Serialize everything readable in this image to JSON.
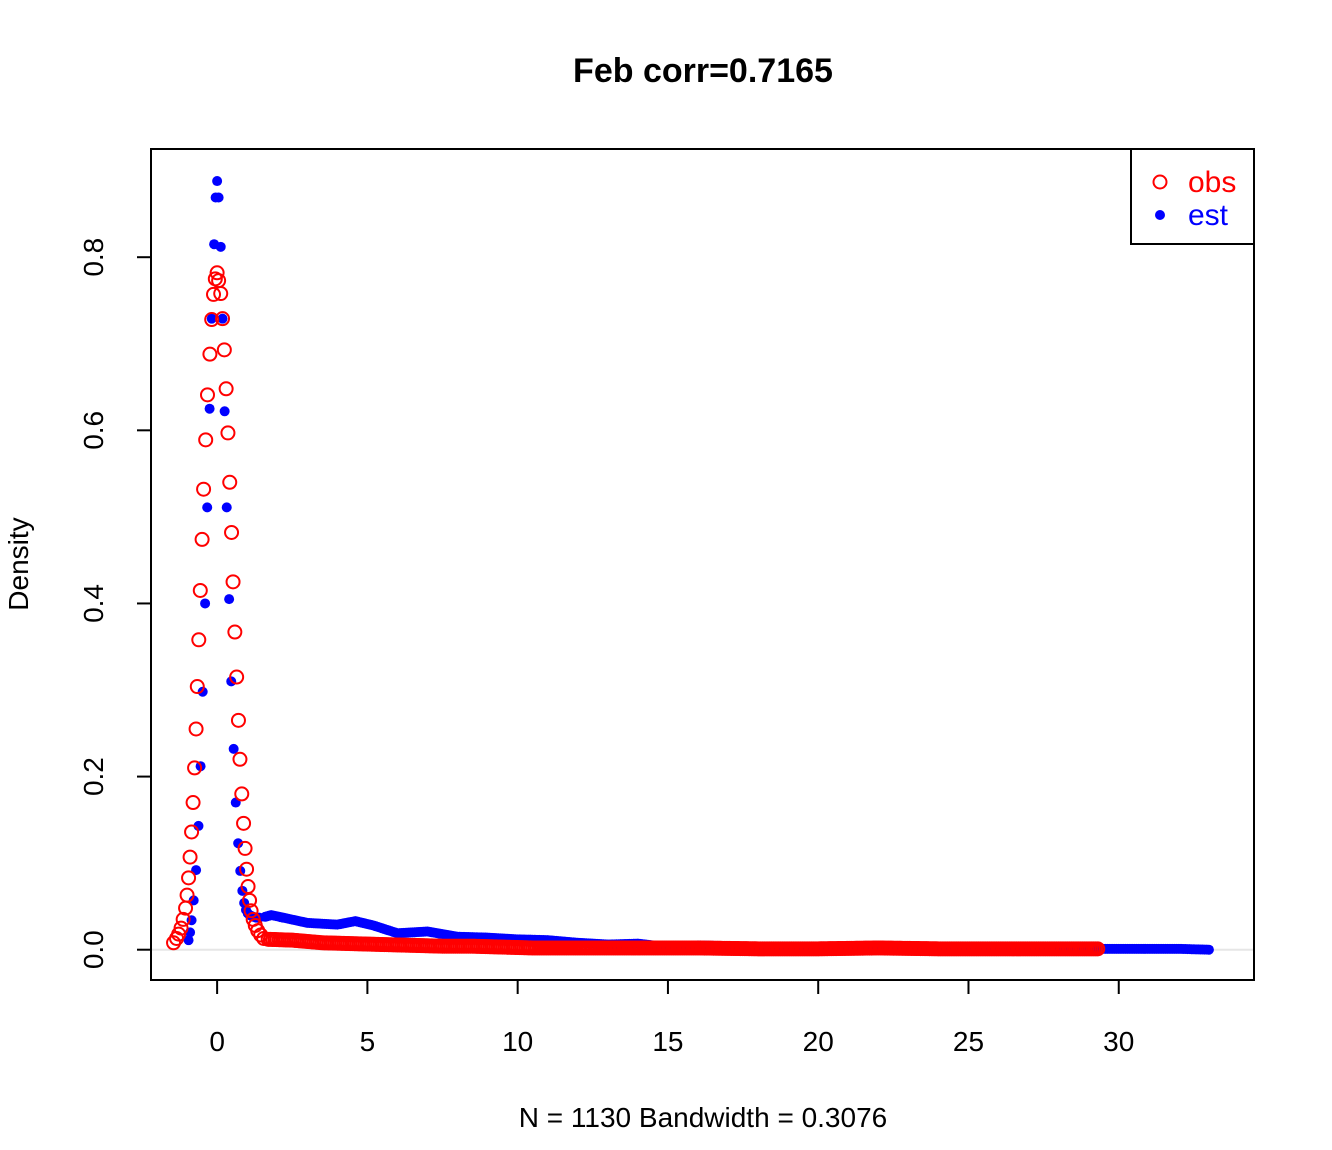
{
  "chart_data": {
    "type": "scatter",
    "title": "Feb corr=0.7165",
    "xlabel": "N = 1130   Bandwidth = 0.3076",
    "ylabel": "Density",
    "xlim": [
      -2.2,
      34.5
    ],
    "ylim": [
      -0.035,
      0.925
    ],
    "x_ticks": [
      0,
      5,
      10,
      15,
      20,
      25,
      30
    ],
    "x_tick_labels": [
      "0",
      "5",
      "10",
      "15",
      "20",
      "25",
      "30"
    ],
    "y_ticks": [
      0.0,
      0.2,
      0.4,
      0.6,
      0.8
    ],
    "y_tick_labels": [
      "0.0",
      "0.2",
      "0.4",
      "0.6",
      "0.8"
    ],
    "grid": false,
    "legend_position": "top-right",
    "series": [
      {
        "name": "obs",
        "color": "#ff0000",
        "marker": "open-circle",
        "peak": [
          [
            -1.45,
            0.008
          ],
          [
            -1.35,
            0.013
          ],
          [
            -1.28,
            0.018
          ],
          [
            -1.2,
            0.025
          ],
          [
            -1.13,
            0.035
          ],
          [
            -1.05,
            0.048
          ],
          [
            -1.0,
            0.063
          ],
          [
            -0.95,
            0.083
          ],
          [
            -0.9,
            0.107
          ],
          [
            -0.85,
            0.136
          ],
          [
            -0.8,
            0.17
          ],
          [
            -0.75,
            0.21
          ],
          [
            -0.7,
            0.255
          ],
          [
            -0.66,
            0.304
          ],
          [
            -0.61,
            0.358
          ],
          [
            -0.56,
            0.415
          ],
          [
            -0.5,
            0.474
          ],
          [
            -0.45,
            0.532
          ],
          [
            -0.38,
            0.589
          ],
          [
            -0.32,
            0.641
          ],
          [
            -0.24,
            0.688
          ],
          [
            -0.18,
            0.728
          ],
          [
            -0.12,
            0.757
          ],
          [
            -0.06,
            0.775
          ],
          [
            0.0,
            0.782
          ],
          [
            0.05,
            0.773
          ],
          [
            0.12,
            0.758
          ],
          [
            0.18,
            0.729
          ],
          [
            0.24,
            0.693
          ],
          [
            0.3,
            0.648
          ],
          [
            0.36,
            0.597
          ],
          [
            0.42,
            0.54
          ],
          [
            0.48,
            0.482
          ],
          [
            0.53,
            0.425
          ],
          [
            0.59,
            0.367
          ],
          [
            0.65,
            0.315
          ],
          [
            0.71,
            0.265
          ],
          [
            0.76,
            0.22
          ],
          [
            0.82,
            0.18
          ],
          [
            0.88,
            0.146
          ],
          [
            0.93,
            0.117
          ],
          [
            0.98,
            0.093
          ],
          [
            1.03,
            0.073
          ],
          [
            1.08,
            0.057
          ],
          [
            1.13,
            0.045
          ],
          [
            1.2,
            0.035
          ],
          [
            1.27,
            0.028
          ],
          [
            1.35,
            0.022
          ],
          [
            1.45,
            0.017
          ],
          [
            1.55,
            0.013
          ]
        ],
        "tail": [
          [
            1.7,
            0.012
          ],
          [
            2.5,
            0.011
          ],
          [
            3.5,
            0.008
          ],
          [
            4.5,
            0.007
          ],
          [
            5.5,
            0.006
          ],
          [
            6.5,
            0.005
          ],
          [
            7.5,
            0.004
          ],
          [
            8.5,
            0.004
          ],
          [
            9.5,
            0.003
          ],
          [
            10.5,
            0.002
          ],
          [
            12,
            0.002
          ],
          [
            14,
            0.002
          ],
          [
            16,
            0.002
          ],
          [
            18,
            0.001
          ],
          [
            20,
            0.001
          ],
          [
            22,
            0.002
          ],
          [
            24,
            0.001
          ],
          [
            26,
            0.001
          ],
          [
            28,
            0.001
          ],
          [
            29.3,
            0.001
          ]
        ]
      },
      {
        "name": "est",
        "color": "#0000ff",
        "marker": "filled-dot",
        "peak": [
          [
            -0.95,
            0.011
          ],
          [
            -0.9,
            0.02
          ],
          [
            -0.85,
            0.034
          ],
          [
            -0.78,
            0.057
          ],
          [
            -0.7,
            0.092
          ],
          [
            -0.62,
            0.143
          ],
          [
            -0.55,
            0.212
          ],
          [
            -0.48,
            0.298
          ],
          [
            -0.4,
            0.4
          ],
          [
            -0.33,
            0.511
          ],
          [
            -0.25,
            0.625
          ],
          [
            -0.18,
            0.729
          ],
          [
            -0.1,
            0.815
          ],
          [
            -0.05,
            0.869
          ],
          [
            0.0,
            0.888
          ],
          [
            0.05,
            0.869
          ],
          [
            0.12,
            0.812
          ],
          [
            0.18,
            0.729
          ],
          [
            0.25,
            0.622
          ],
          [
            0.32,
            0.511
          ],
          [
            0.4,
            0.405
          ],
          [
            0.47,
            0.31
          ],
          [
            0.55,
            0.232
          ],
          [
            0.62,
            0.17
          ],
          [
            0.7,
            0.123
          ],
          [
            0.77,
            0.091
          ],
          [
            0.84,
            0.068
          ],
          [
            0.9,
            0.054
          ],
          [
            0.96,
            0.046
          ],
          [
            1.02,
            0.042
          ],
          [
            1.08,
            0.04
          ],
          [
            1.14,
            0.039
          ],
          [
            1.2,
            0.038
          ],
          [
            1.3,
            0.037
          ],
          [
            1.4,
            0.037
          ]
        ],
        "tail": [
          [
            1.6,
            0.038
          ],
          [
            1.8,
            0.04
          ],
          [
            2.2,
            0.037
          ],
          [
            3.0,
            0.031
          ],
          [
            4.0,
            0.029
          ],
          [
            4.6,
            0.033
          ],
          [
            5.2,
            0.028
          ],
          [
            6.0,
            0.019
          ],
          [
            7.0,
            0.021
          ],
          [
            8.0,
            0.015
          ],
          [
            9.0,
            0.014
          ],
          [
            10.0,
            0.012
          ],
          [
            11.0,
            0.011
          ],
          [
            12.0,
            0.008
          ],
          [
            13.0,
            0.006
          ],
          [
            14.0,
            0.007
          ],
          [
            15.0,
            0.003
          ],
          [
            16.0,
            0.005
          ],
          [
            17.0,
            0.004
          ],
          [
            18.0,
            0.003
          ],
          [
            20.0,
            0.002
          ],
          [
            22.0,
            0.002
          ],
          [
            24.0,
            0.001
          ],
          [
            26.0,
            0.001
          ],
          [
            28.0,
            0.001
          ],
          [
            30.0,
            0.001
          ],
          [
            32.0,
            0.001
          ],
          [
            33.0,
            0.0
          ]
        ]
      }
    ]
  }
}
